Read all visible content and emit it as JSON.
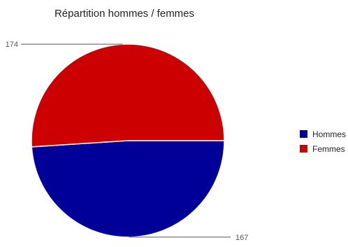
{
  "chart_data": {
    "type": "pie",
    "title": "Répartition hommes / femmes",
    "labels": [
      "Hommes",
      "Femmes"
    ],
    "values": [
      167,
      174
    ],
    "colors": [
      "#000099",
      "#cc0000"
    ],
    "value_labels": [
      "167",
      "174"
    ],
    "legend_position": "right"
  }
}
